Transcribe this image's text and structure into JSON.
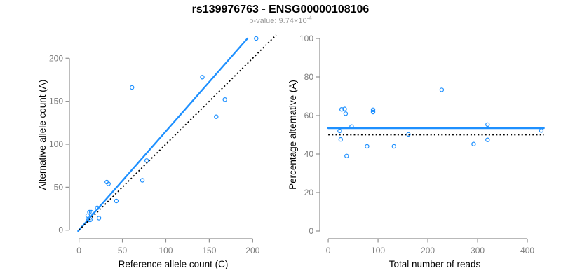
{
  "header": {
    "title": "rs139976763 - ENSG00000108106",
    "subtitle_prefix": "p-value: 9.74×10",
    "subtitle_exponent": "-4"
  },
  "colors": {
    "accent_blue": "#1E90FF",
    "line_black": "#000000",
    "axis_gray": "#8f8f8f",
    "tick_label_gray": "#7d7d7d",
    "axis_label_black": "#000000",
    "title_black": "#000000",
    "subtitle_gray": "#9a9a9a",
    "background": "#ffffff"
  },
  "chart_data": [
    {
      "type": "scatter",
      "name": "allele-counts",
      "xlabel": "Reference allele count (C)",
      "ylabel": "Alternative allele count (A)",
      "xticks": [
        0,
        50,
        100,
        150,
        200
      ],
      "yticks": [
        0,
        50,
        100,
        150,
        200
      ],
      "xlim": [
        -11,
        228
      ],
      "ylim": [
        -10,
        232
      ],
      "grid": false,
      "legend": false,
      "point_color": "#1E90FF",
      "points": [
        [
          204,
          223
        ],
        [
          142,
          178
        ],
        [
          168,
          152
        ],
        [
          158,
          132
        ],
        [
          61,
          166
        ],
        [
          78,
          81
        ],
        [
          73,
          58
        ],
        [
          32,
          56
        ],
        [
          34,
          54
        ],
        [
          43,
          34
        ],
        [
          23,
          14
        ],
        [
          21,
          26
        ],
        [
          14,
          21
        ],
        [
          12,
          21
        ],
        [
          10,
          17
        ],
        [
          13,
          12
        ],
        [
          11,
          12
        ]
      ],
      "lines": [
        {
          "name": "regression-line",
          "x1": -1,
          "y1": -1,
          "x2": 194,
          "y2": 223,
          "color": "#1E90FF",
          "dashed": false,
          "width": 2.4
        },
        {
          "name": "identity-line",
          "x1": 0,
          "y1": 0,
          "x2": 227,
          "y2": 227,
          "color": "#000000",
          "dashed": true,
          "width": 1.8
        }
      ]
    },
    {
      "type": "scatter",
      "name": "percentage-alternative",
      "xlabel": "Total number of reads",
      "ylabel": "Percentage alternative (A)",
      "xticks": [
        0,
        100,
        200,
        300,
        400
      ],
      "yticks": [
        0,
        20,
        40,
        60,
        80,
        100
      ],
      "xlim": [
        -17,
        445
      ],
      "ylim": [
        -4,
        104
      ],
      "grid": false,
      "legend": false,
      "point_color": "#1E90FF",
      "points": [
        [
          428,
          52.2
        ],
        [
          320,
          55.3
        ],
        [
          320,
          47.4
        ],
        [
          292,
          45.2
        ],
        [
          228,
          73.3
        ],
        [
          161,
          50.2
        ],
        [
          132,
          44
        ],
        [
          90,
          63
        ],
        [
          90,
          61.8
        ],
        [
          78,
          44
        ],
        [
          37,
          39
        ],
        [
          47,
          54.3
        ],
        [
          35,
          61
        ],
        [
          33,
          63.4
        ],
        [
          27,
          63.2
        ],
        [
          25,
          47.6
        ],
        [
          23,
          52
        ]
      ],
      "lines": [
        {
          "name": "mean-percentage-line",
          "x1": 0,
          "y1": 53.5,
          "x2": 433,
          "y2": 53.5,
          "color": "#1E90FF",
          "dashed": false,
          "width": 2.6
        },
        {
          "name": "expected-50pct-line",
          "x1": 0,
          "y1": 50,
          "x2": 433,
          "y2": 50,
          "color": "#000000",
          "dashed": true,
          "width": 1.8
        }
      ]
    }
  ]
}
